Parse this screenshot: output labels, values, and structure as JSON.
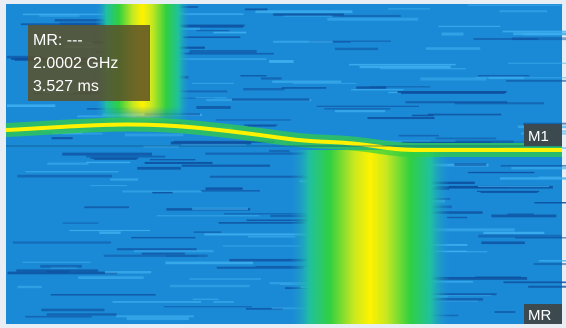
{
  "readout": {
    "lines": [
      "MR: ---",
      "2.0002 GHz",
      "3.527 ms"
    ]
  },
  "markers": [
    {
      "label": "M1"
    },
    {
      "label": "MR"
    }
  ]
}
